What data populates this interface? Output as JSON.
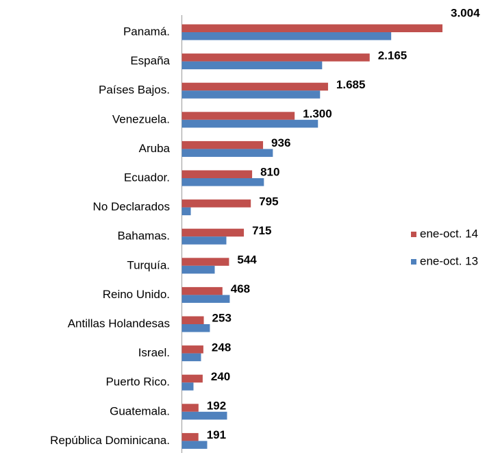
{
  "chart_data": {
    "type": "bar",
    "orientation": "horizontal",
    "categories": [
      "Panamá.",
      "España",
      "Países Bajos.",
      "Venezuela.",
      "Aruba",
      "Ecuador.",
      "No Declarados",
      "Bahamas.",
      "Turquía.",
      "Reino Unido.",
      "Antillas Holandesas",
      "Israel.",
      "Puerto Rico.",
      "Guatemala.",
      "República Dominicana."
    ],
    "series": [
      {
        "name": "ene-oct. 14",
        "color": "#c0504d",
        "values": [
          3004,
          2165,
          1685,
          1300,
          936,
          810,
          795,
          715,
          544,
          468,
          253,
          248,
          240,
          192,
          191
        ],
        "value_labels": [
          "3.004",
          "2.165",
          "1.685",
          "1.300",
          "936",
          "810",
          "795",
          "715",
          "544",
          "468",
          "253",
          "248",
          "240",
          "192",
          "191"
        ]
      },
      {
        "name": "ene-oct. 13",
        "color": "#4f81bd",
        "values": [
          2413,
          1617,
          1593,
          1569,
          1049,
          946,
          103,
          513,
          379,
          552,
          323,
          221,
          134,
          521,
          292
        ]
      }
    ],
    "legend": "right"
  }
}
